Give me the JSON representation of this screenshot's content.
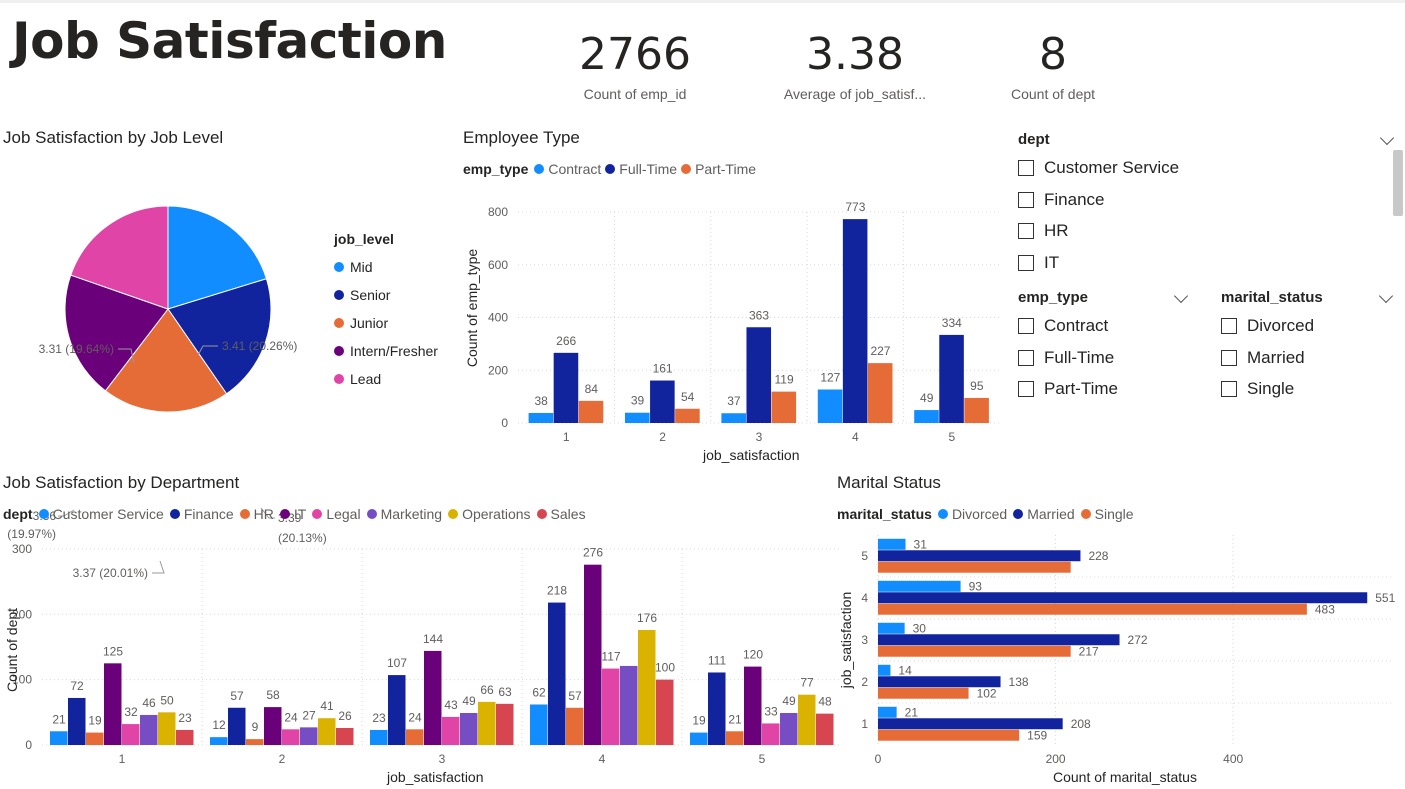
{
  "title": "Job Satisfaction",
  "cards": [
    {
      "value": "2766",
      "label": "Count of emp_id"
    },
    {
      "value": "3.38",
      "label": "Average of job_satisf..."
    },
    {
      "value": "8",
      "label": "Count of dept"
    }
  ],
  "pie": {
    "title": "Job Satisfaction by Job Level",
    "legend_title": "job_level",
    "labels": {
      "mid": "3.41 (20.26%)",
      "senior_a": "3.39",
      "senior_b": "(20.13%)",
      "junior": "3.37 (20.01%)",
      "intern_a": "3.36",
      "intern_b": "(19.97%)",
      "lead": "3.31 (19.64%)"
    }
  },
  "emp_type_chart": {
    "title": "Employee Type",
    "legend_title": "emp_type",
    "xlabel": "job_satisfaction",
    "ylabel": "Count of emp_type"
  },
  "dept_chart": {
    "title": "Job Satisfaction by Department",
    "legend_title": "dept",
    "xlabel": "job_satisfaction",
    "ylabel": "Count of dept"
  },
  "marital_chart": {
    "title": "Marital Status",
    "legend_title": "marital_status",
    "xlabel": "Count of marital_status",
    "ylabel": "job_satisfaction"
  },
  "slicers": {
    "dept": {
      "title": "dept",
      "options": [
        "Customer Service",
        "Finance",
        "HR",
        "IT"
      ]
    },
    "emp_type": {
      "title": "emp_type",
      "options": [
        "Contract",
        "Full-Time",
        "Part-Time"
      ]
    },
    "marital_status": {
      "title": "marital_status",
      "options": [
        "Divorced",
        "Married",
        "Single"
      ]
    }
  },
  "chart_data": [
    {
      "type": "pie",
      "categories": [
        "Mid",
        "Senior",
        "Junior",
        "Intern/Fresher",
        "Lead"
      ],
      "values": [
        3.41,
        3.39,
        3.37,
        3.36,
        3.31
      ],
      "percents": [
        20.26,
        20.13,
        20.01,
        19.97,
        19.64
      ],
      "colors": [
        "#118DFF",
        "#12239E",
        "#E66C37",
        "#6B007B",
        "#E044A7"
      ]
    },
    {
      "type": "bar",
      "categories": [
        "1",
        "2",
        "3",
        "4",
        "5"
      ],
      "series": [
        {
          "name": "Contract",
          "values": [
            38,
            39,
            37,
            127,
            49
          ],
          "color": "#118DFF"
        },
        {
          "name": "Full-Time",
          "values": [
            266,
            161,
            363,
            773,
            334
          ],
          "color": "#12239E"
        },
        {
          "name": "Part-Time",
          "values": [
            84,
            54,
            119,
            227,
            95
          ],
          "color": "#E66C37"
        }
      ],
      "ylim": [
        0,
        800
      ],
      "yticks": [
        0,
        200,
        400,
        600,
        800
      ]
    },
    {
      "type": "bar",
      "categories": [
        "1",
        "2",
        "3",
        "4",
        "5"
      ],
      "series": [
        {
          "name": "Customer Service",
          "values": [
            21,
            12,
            23,
            62,
            19
          ],
          "color": "#118DFF"
        },
        {
          "name": "Finance",
          "values": [
            72,
            57,
            107,
            218,
            111
          ],
          "color": "#12239E"
        },
        {
          "name": "HR",
          "values": [
            19,
            9,
            24,
            57,
            21
          ],
          "color": "#E66C37"
        },
        {
          "name": "IT",
          "values": [
            125,
            58,
            144,
            276,
            120
          ],
          "color": "#6B007B"
        },
        {
          "name": "Legal",
          "values": [
            32,
            24,
            43,
            117,
            33
          ],
          "color": "#E044A7"
        },
        {
          "name": "Marketing",
          "values": [
            46,
            27,
            49,
            121,
            49
          ],
          "color": "#744EC2"
        },
        {
          "name": "Operations",
          "values": [
            50,
            41,
            66,
            176,
            77
          ],
          "color": "#D9B300"
        },
        {
          "name": "Sales",
          "values": [
            23,
            26,
            63,
            100,
            48
          ],
          "color": "#D64550"
        }
      ],
      "hidden_labels": [
        [
          5,
          3
        ]
      ],
      "ylim": [
        0,
        300
      ],
      "yticks": [
        0,
        100,
        200,
        300
      ]
    },
    {
      "type": "bar",
      "orientation": "horizontal",
      "categories": [
        "5",
        "4",
        "3",
        "2",
        "1"
      ],
      "series": [
        {
          "name": "Divorced",
          "values": [
            31,
            93,
            30,
            14,
            21
          ],
          "color": "#118DFF"
        },
        {
          "name": "Married",
          "values": [
            228,
            551,
            272,
            138,
            208
          ],
          "color": "#12239E"
        },
        {
          "name": "Single",
          "values": [
            217,
            483,
            217,
            102,
            159
          ],
          "color": "#E66C37"
        }
      ],
      "hidden_labels": [
        [
          2,
          0
        ]
      ],
      "xlim": [
        0,
        580
      ],
      "xticks": [
        0,
        200,
        400
      ]
    }
  ]
}
